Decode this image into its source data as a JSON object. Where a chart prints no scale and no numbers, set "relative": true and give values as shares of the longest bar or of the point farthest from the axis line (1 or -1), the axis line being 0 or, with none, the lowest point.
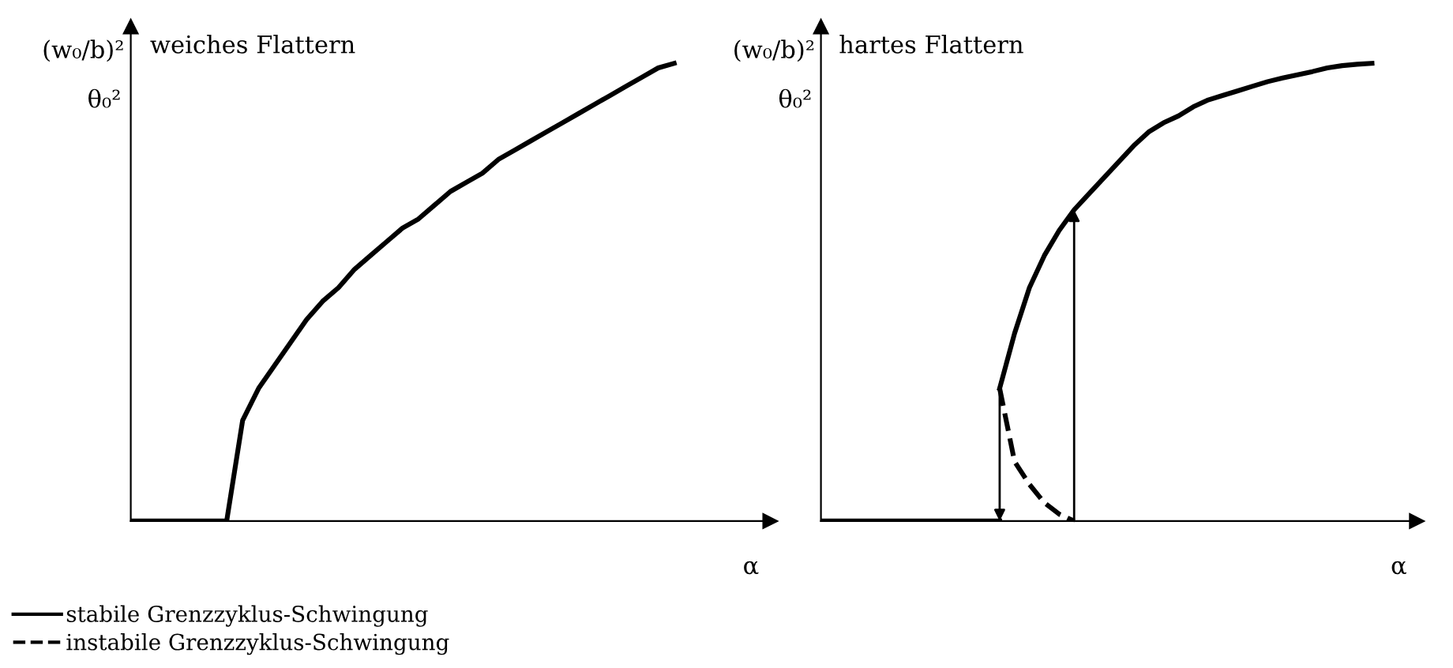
{
  "chart_data": [
    {
      "type": "line",
      "title": "weiches Flattern",
      "ylabel": "(w₀/b)²",
      "xlabel": "α",
      "annotations": [
        "θ₀²"
      ],
      "relative": true,
      "tick_labels": false,
      "legend": "bottom left",
      "categories": [
        null,
        null,
        null,
        null,
        null,
        null,
        null,
        null,
        null,
        null,
        null,
        null,
        null,
        null,
        null,
        null,
        null,
        null,
        null,
        null,
        null,
        null,
        null,
        null,
        null,
        null,
        null,
        null,
        null,
        null,
        null,
        null,
        null,
        null,
        null,
        null,
        null,
        null,
        null,
        null,
        null
      ],
      "series": [
        {
          "name": "stabile Grenzzyklus-Schwingung",
          "color": "#000000",
          "line_style": "solid",
          "values": [
            0,
            0,
            0,
            0,
            0,
            0,
            0,
            null,
            null,
            null,
            null,
            null,
            null,
            null,
            null,
            null,
            null,
            null,
            null,
            null,
            null,
            null,
            null,
            null,
            null,
            null,
            null,
            null,
            null,
            null,
            null,
            null,
            null,
            null,
            null,
            null,
            null,
            null,
            null,
            null,
            null
          ]
        },
        {
          "color": "#000000",
          "line_style": "solid",
          "values": [
            null,
            null,
            null,
            null,
            null,
            null,
            0,
            0.22,
            0.29,
            0.34,
            0.39,
            0.44,
            0.48,
            0.51,
            0.55,
            0.58,
            0.61,
            0.64,
            0.66,
            0.69,
            0.72,
            0.74,
            0.76,
            0.79,
            0.81,
            0.83,
            0.85,
            0.87,
            0.89,
            0.91,
            0.93,
            0.95,
            0.97,
            0.99,
            1,
            null,
            null,
            null,
            null,
            null,
            null
          ]
        }
      ]
    },
    {
      "type": "line",
      "title": "hartes Flattern",
      "ylabel": "(w₀/b)²",
      "xlabel": "α",
      "annotations": [
        "θ₀²"
      ],
      "relative": true,
      "tick_labels": false,
      "categories": [
        null,
        null,
        null,
        null,
        null,
        null,
        null,
        null,
        null,
        null,
        null,
        null,
        null,
        null,
        null,
        null,
        null,
        null,
        null,
        null,
        null,
        null,
        null,
        null,
        null,
        null,
        null,
        null,
        null,
        null,
        null,
        null,
        null,
        null,
        null,
        null,
        null,
        null,
        null,
        null,
        null
      ],
      "series": [
        {
          "color": "#000000",
          "line_style": "solid",
          "values": [
            0,
            0,
            0,
            0,
            0,
            0,
            0,
            0,
            0,
            0,
            0,
            0,
            0,
            null,
            null,
            null,
            null,
            null,
            null,
            null,
            null,
            null,
            null,
            null,
            null,
            null,
            null,
            null,
            null,
            null,
            null,
            null,
            null,
            null,
            null,
            null,
            null,
            null,
            null,
            null,
            null
          ]
        },
        {
          "color": "#000000",
          "line_style": "solid",
          "values": [
            null,
            null,
            null,
            null,
            null,
            null,
            null,
            null,
            null,
            null,
            null,
            null,
            0.29,
            0.41,
            0.51,
            0.58,
            0.635,
            0.68,
            0.715,
            0.75,
            0.785,
            0.82,
            0.85,
            0.87,
            0.885,
            0.905,
            0.92,
            0.93,
            0.94,
            0.95,
            0.96,
            0.968,
            0.975,
            0.982,
            0.99,
            0.995,
            0.998,
            1,
            null,
            null,
            null
          ]
        },
        {
          "name": "instabile Grenzzyklus-Schwingung",
          "color": "#000000",
          "line_style": "dashed",
          "values": [
            null,
            null,
            null,
            null,
            null,
            null,
            null,
            null,
            null,
            null,
            null,
            null,
            0.29,
            0.13,
            0.08,
            0.04,
            0.015,
            0,
            null,
            null,
            null,
            null,
            null,
            null,
            null,
            null,
            null,
            null,
            null,
            null,
            null,
            null,
            null,
            null,
            null,
            null,
            null,
            null,
            null,
            null,
            null
          ]
        }
      ]
    }
  ]
}
